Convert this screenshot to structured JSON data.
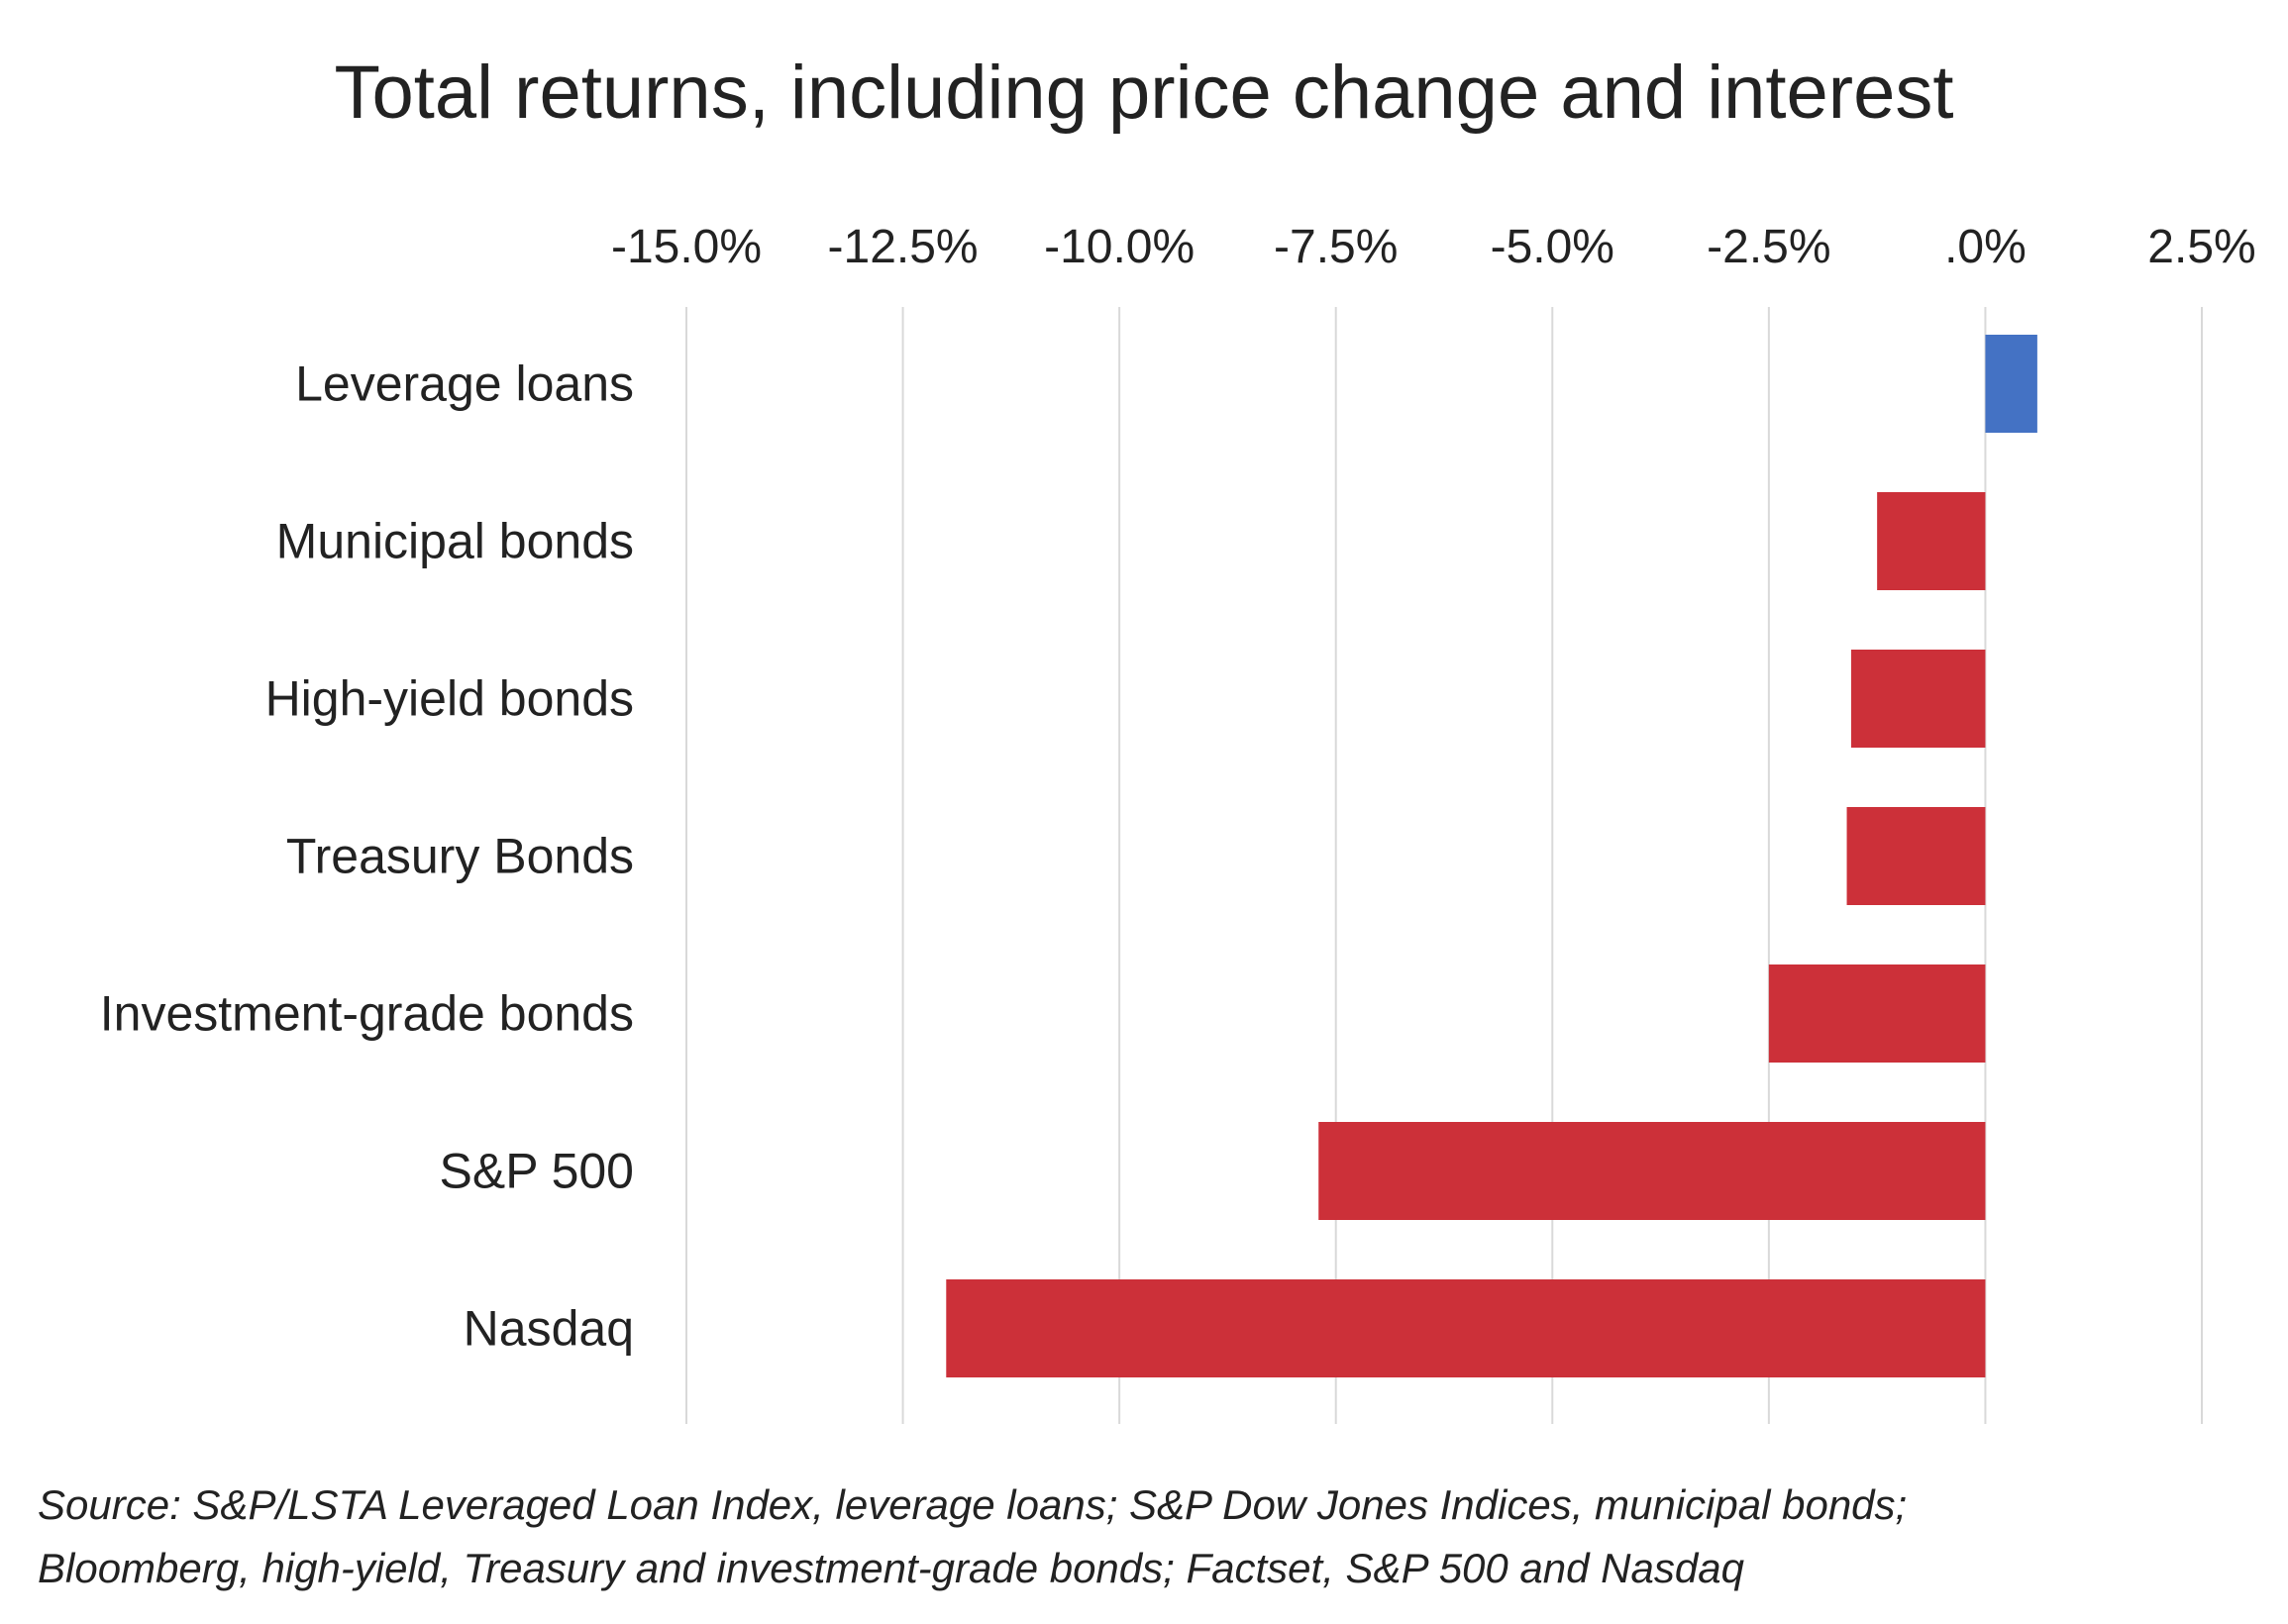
{
  "chart_data": {
    "type": "bar",
    "orientation": "horizontal",
    "title": "Total returns, including price change and interest",
    "xlabel": "",
    "ylabel": "",
    "categories": [
      "Leverage loans",
      "Municipal bonds",
      "High-yield bonds",
      "Treasury Bonds",
      "Investment-grade bonds",
      "S&P 500",
      "Nasdaq"
    ],
    "values": [
      0.6,
      -1.25,
      -1.55,
      -1.6,
      -2.5,
      -7.7,
      -12.0
    ],
    "xlim": [
      -15.0,
      2.5
    ],
    "x_ticks": [
      "-15.0%",
      "-12.5%",
      "-10.0%",
      "-7.5%",
      "-5.0%",
      "-2.5%",
      ".0%",
      "2.5%"
    ],
    "x_tick_values": [
      -15.0,
      -12.5,
      -10.0,
      -7.5,
      -5.0,
      -2.5,
      0.0,
      2.5
    ],
    "axis_position": "top",
    "grid": true,
    "legend": "none",
    "colors": {
      "positive": "#4472c4",
      "negative": "#cc3039",
      "grid": "#d9d9d9"
    }
  },
  "source_lines": [
    "Source: S&P/LSTA Leveraged Loan Index, leverage loans; S&P Dow Jones Indices, municipal bonds;",
    "Bloomberg, high-yield, Treasury and investment-grade bonds; Factset, S&P 500 and Nasdaq"
  ]
}
